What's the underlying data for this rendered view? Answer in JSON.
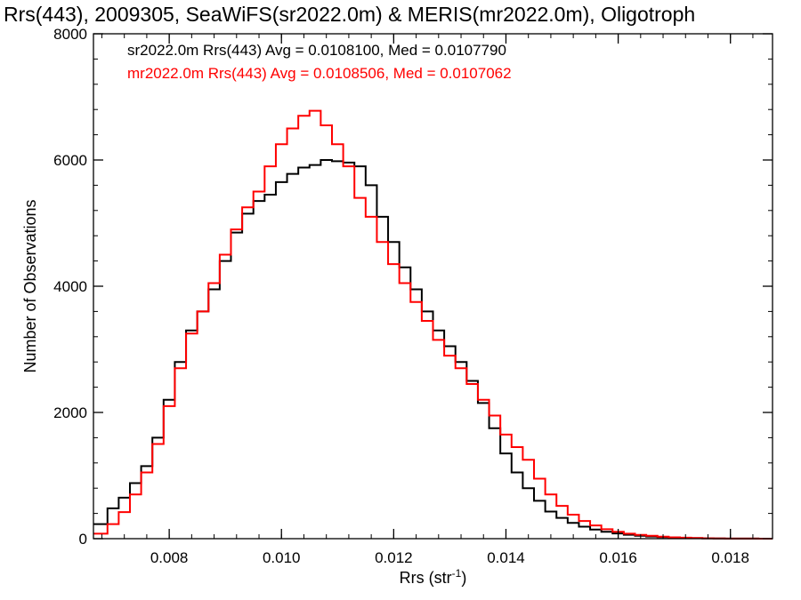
{
  "chart_data": {
    "type": "line",
    "title": "Rrs(443), 2009305, SeaWiFS(sr2022.0m) & MERIS(mr2022.0m), Oligotroph",
    "xlabel": "Rrs (str",
    "xlabel_sup": "-1",
    "xlabel_close": ")",
    "ylabel": "Number of Observations",
    "xlim": [
      0.00665,
      0.01875
    ],
    "ylim": [
      0,
      8000
    ],
    "x_ticks": [
      0.008,
      0.01,
      0.012,
      0.014,
      0.016,
      0.018
    ],
    "x_tick_labels": [
      "0.008",
      "0.010",
      "0.012",
      "0.014",
      "0.016",
      "0.018"
    ],
    "y_ticks": [
      0,
      2000,
      4000,
      6000,
      8000
    ],
    "y_tick_labels": [
      "0",
      "2000",
      "4000",
      "6000",
      "8000"
    ],
    "grid": false,
    "legend_position": "top-left",
    "series": [
      {
        "name": "sr2022.0m Rrs(443) Avg = 0.0108100, Med = 0.0107790",
        "color": "#000000",
        "x": [
          0.00665,
          0.0069,
          0.0071,
          0.0073,
          0.0075,
          0.0077,
          0.0079,
          0.0081,
          0.0083,
          0.0085,
          0.0087,
          0.0089,
          0.0091,
          0.0093,
          0.0095,
          0.0097,
          0.0099,
          0.0101,
          0.0103,
          0.0105,
          0.0107,
          0.0109,
          0.0111,
          0.0113,
          0.0115,
          0.0117,
          0.0119,
          0.0121,
          0.0123,
          0.0125,
          0.0127,
          0.0129,
          0.0131,
          0.0133,
          0.0135,
          0.0137,
          0.0139,
          0.0141,
          0.0143,
          0.0145,
          0.0147,
          0.0149,
          0.0151,
          0.0153,
          0.0155,
          0.0157,
          0.0159,
          0.0161,
          0.0163,
          0.0165,
          0.0167,
          0.0169,
          0.0171,
          0.0173,
          0.0175,
          0.0177,
          0.0179,
          0.0181,
          0.0183,
          0.0185,
          0.01875
        ],
        "y": [
          230,
          480,
          650,
          880,
          1150,
          1600,
          2200,
          2800,
          3300,
          3600,
          3950,
          4400,
          4850,
          5150,
          5350,
          5450,
          5650,
          5780,
          5880,
          5920,
          6000,
          5980,
          5960,
          5900,
          5600,
          5100,
          4700,
          4300,
          3950,
          3600,
          3300,
          3050,
          2800,
          2500,
          2150,
          1750,
          1350,
          1050,
          800,
          600,
          430,
          330,
          250,
          190,
          145,
          110,
          82,
          62,
          46,
          34,
          24,
          17,
          12,
          8,
          5,
          3,
          2,
          1,
          1,
          0,
          0
        ]
      },
      {
        "name": "mr2022.0m Rrs(443) Avg = 0.0108506, Med = 0.0107062",
        "color": "#ff0000",
        "x": [
          0.00665,
          0.0069,
          0.0071,
          0.0073,
          0.0075,
          0.0077,
          0.0079,
          0.0081,
          0.0083,
          0.0085,
          0.0087,
          0.0089,
          0.0091,
          0.0093,
          0.0095,
          0.0097,
          0.0099,
          0.0101,
          0.0103,
          0.0105,
          0.0107,
          0.0109,
          0.0111,
          0.0113,
          0.0115,
          0.0117,
          0.0119,
          0.0121,
          0.0123,
          0.0125,
          0.0127,
          0.0129,
          0.0131,
          0.0133,
          0.0135,
          0.0137,
          0.0139,
          0.0141,
          0.0143,
          0.0145,
          0.0147,
          0.0149,
          0.0151,
          0.0153,
          0.0155,
          0.0157,
          0.0159,
          0.0161,
          0.0163,
          0.0165,
          0.0167,
          0.0169,
          0.0171,
          0.0173,
          0.0175,
          0.0177,
          0.0179,
          0.0181,
          0.0183,
          0.0185,
          0.01875
        ],
        "y": [
          80,
          230,
          420,
          700,
          1050,
          1500,
          2100,
          2700,
          3250,
          3600,
          4050,
          4500,
          4900,
          5250,
          5500,
          5900,
          6250,
          6500,
          6700,
          6780,
          6550,
          6250,
          5900,
          5400,
          5100,
          4700,
          4350,
          4050,
          3750,
          3450,
          3150,
          2900,
          2700,
          2450,
          2200,
          1950,
          1650,
          1450,
          1250,
          950,
          700,
          520,
          380,
          280,
          210,
          150,
          110,
          80,
          60,
          45,
          32,
          22,
          15,
          10,
          6,
          4,
          2,
          1,
          1,
          0,
          0
        ]
      }
    ]
  }
}
